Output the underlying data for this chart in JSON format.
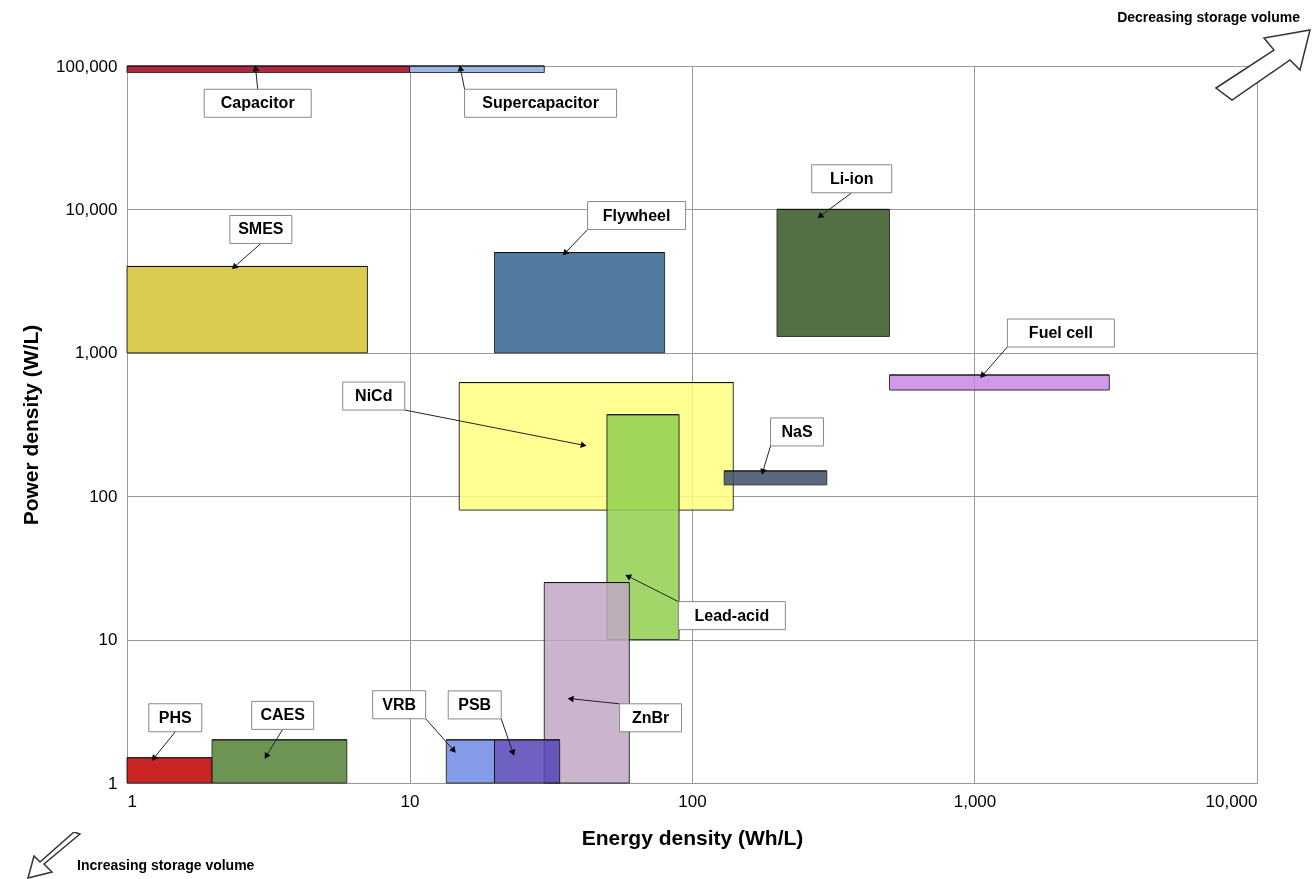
{
  "chart_data": {
    "type": "bar",
    "xlabel": "Energy density (Wh/L)",
    "ylabel": "Power density (W/L)",
    "xlim": [
      1,
      10000
    ],
    "ylim": [
      1,
      100000
    ],
    "xticks": [
      1,
      10,
      100,
      {
        "value": 1000,
        "label": "1,000"
      },
      {
        "value": 10000,
        "label": "10,000"
      }
    ],
    "yticks": [
      1,
      10,
      100,
      {
        "value": 1000,
        "label": "1,000"
      },
      {
        "value": 10000,
        "label": "10,000"
      },
      {
        "value": 100000,
        "label": "100,000"
      }
    ],
    "log": "xy",
    "grid": true,
    "series": [
      {
        "name": "Capacitor",
        "color": "#a50021",
        "x": [
          3.2
        ],
        "xerrors": [
          [
            1,
            10
          ]
        ],
        "base": [
          90000
        ],
        "values": [
          10000
        ]
      },
      {
        "name": "Supercapacitor",
        "color": "#8eaadb",
        "x": [
          17
        ],
        "xerrors": [
          [
            10,
            30
          ]
        ],
        "base": [
          90000
        ],
        "values": [
          10000
        ]
      },
      {
        "name": "SMES",
        "color": "#d4c233",
        "x": [
          2.7
        ],
        "xerrors": [
          [
            1,
            7.1
          ]
        ],
        "base": [
          1000
        ],
        "values": [
          3000
        ]
      },
      {
        "name": "Flywheel",
        "color": "#336690",
        "x": [
          40
        ],
        "xerrors": [
          [
            20,
            80
          ]
        ],
        "base": [
          1000
        ],
        "values": [
          4000
        ]
      },
      {
        "name": "Li-ion",
        "color": "#375623",
        "x": [
          320
        ],
        "xerrors": [
          [
            200,
            500
          ]
        ],
        "base": [
          1300
        ],
        "values": [
          8700
        ]
      },
      {
        "name": "Fuel cell",
        "color": "#cc88e6",
        "x": [
          1200
        ],
        "xerrors": [
          [
            500,
            3000
          ]
        ],
        "base": [
          550
        ],
        "values": [
          150
        ]
      },
      {
        "name": "NiCd",
        "color": "#ffff80",
        "x": [
          46
        ],
        "xerrors": [
          [
            15,
            140
          ]
        ],
        "base": [
          80
        ],
        "values": [
          540
        ]
      },
      {
        "name": "NaS",
        "color": "#3e506a",
        "x": [
          200
        ],
        "xerrors": [
          [
            130,
            300
          ]
        ],
        "base": [
          120
        ],
        "values": [
          30
        ]
      },
      {
        "name": "Lead-acid",
        "color": "#92d050",
        "x": [
          67
        ],
        "xerrors": [
          [
            50,
            90
          ]
        ],
        "base": [
          10
        ],
        "values": [
          360
        ]
      },
      {
        "name": "ZnBr",
        "color": "#c2a9c4",
        "x": [
          42
        ],
        "xerrors": [
          [
            30,
            60
          ]
        ],
        "base": [
          1
        ],
        "values": [
          24
        ]
      },
      {
        "name": "VRB",
        "color": "#6f8ae3",
        "x": [
          16
        ],
        "xerrors": [
          [
            13.5,
            20
          ]
        ],
        "base": [
          1
        ],
        "values": [
          1
        ]
      },
      {
        "name": "PSB",
        "color": "#5546b8",
        "x": [
          26
        ],
        "xerrors": [
          [
            20,
            34
          ]
        ],
        "base": [
          1
        ],
        "values": [
          1
        ]
      },
      {
        "name": "PHS",
        "color": "#c00000",
        "x": [
          1.4
        ],
        "xerrors": [
          [
            1,
            2
          ]
        ],
        "base": [
          1
        ],
        "values": [
          0.5
        ]
      },
      {
        "name": "CAES",
        "color": "#548235",
        "x": [
          3.5
        ],
        "xerrors": [
          [
            2,
            6
          ]
        ],
        "base": [
          1
        ],
        "values": [
          1
        ]
      }
    ],
    "annotations": [
      "Decreasing storage volume",
      "Increasing storage volume"
    ]
  }
}
